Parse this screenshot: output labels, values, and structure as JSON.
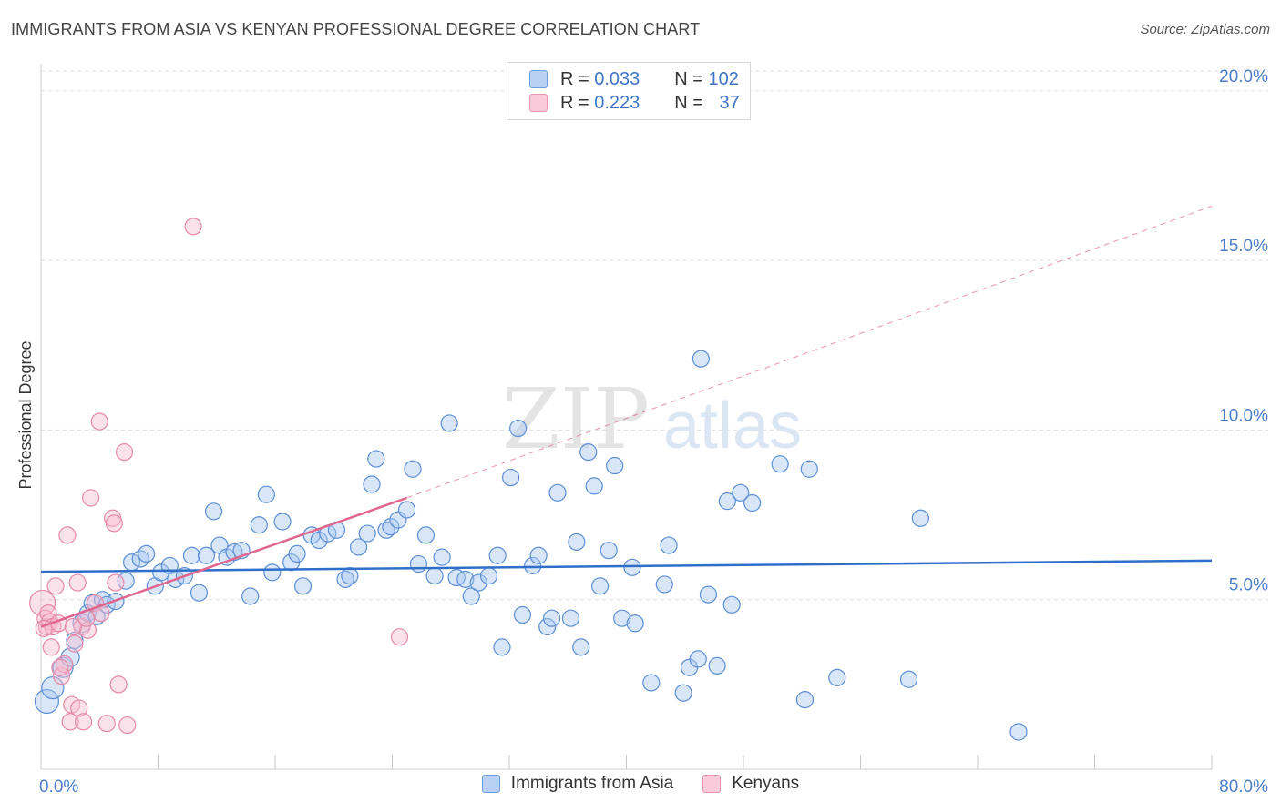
{
  "header": {
    "title": "IMMIGRANTS FROM ASIA VS KENYAN PROFESSIONAL DEGREE CORRELATION CHART",
    "source": "Source: ZipAtlas.com"
  },
  "legend": {
    "r_label": "R =",
    "n_label": "N =",
    "series": [
      {
        "r": "0.033",
        "n": "102"
      },
      {
        "r": "0.223",
        "n": "37"
      }
    ]
  },
  "watermark": {
    "zip": "ZIP",
    "atlas": "atlas"
  },
  "colors": {
    "blue_fill": "#a9c8f0",
    "blue_stroke": "#5b8fd4",
    "blue_line": "#2f6fc9",
    "pink_fill": "#f6bcd0",
    "pink_stroke": "#e58aa8",
    "pink_line": "#e0668e"
  },
  "chart_data": {
    "type": "scatter",
    "title": "IMMIGRANTS FROM ASIA VS KENYAN PROFESSIONAL DEGREE CORRELATION CHART",
    "xlabel": "",
    "ylabel": "Professional Degree",
    "xlim": [
      0,
      80
    ],
    "ylim": [
      0,
      20.8
    ],
    "x_tick_labels": [
      "0.0%",
      "80.0%"
    ],
    "y_ticks": [
      {
        "value": 5,
        "label": "5.0%"
      },
      {
        "value": 10,
        "label": "10.0%"
      },
      {
        "value": 15,
        "label": "15.0%"
      },
      {
        "value": 20,
        "label": "20.0%"
      }
    ],
    "series": [
      {
        "name": "Immigrants from Asia",
        "r": 0.033,
        "n": 102,
        "trend": {
          "x0": 0,
          "y0": 5.82,
          "x1": 80,
          "y1": 6.15
        },
        "points": [
          [
            0.4,
            2.0
          ],
          [
            0.8,
            2.4
          ],
          [
            1.5,
            3.0
          ],
          [
            2.0,
            3.3
          ],
          [
            2.3,
            3.8
          ],
          [
            2.8,
            4.3
          ],
          [
            3.2,
            4.6
          ],
          [
            3.5,
            4.9
          ],
          [
            3.8,
            4.5
          ],
          [
            4.2,
            5.0
          ],
          [
            4.5,
            4.85
          ],
          [
            5.1,
            4.95
          ],
          [
            5.8,
            5.55
          ],
          [
            6.2,
            6.1
          ],
          [
            6.8,
            6.2
          ],
          [
            7.2,
            6.35
          ],
          [
            7.8,
            5.4
          ],
          [
            8.2,
            5.8
          ],
          [
            8.8,
            6.0
          ],
          [
            9.2,
            5.6
          ],
          [
            9.8,
            5.7
          ],
          [
            10.3,
            6.3
          ],
          [
            10.8,
            5.2
          ],
          [
            11.3,
            6.3
          ],
          [
            11.8,
            7.6
          ],
          [
            12.2,
            6.6
          ],
          [
            12.7,
            6.25
          ],
          [
            13.2,
            6.4
          ],
          [
            13.7,
            6.45
          ],
          [
            14.3,
            5.1
          ],
          [
            14.9,
            7.2
          ],
          [
            15.4,
            8.1
          ],
          [
            15.8,
            5.8
          ],
          [
            16.5,
            7.3
          ],
          [
            17.1,
            6.1
          ],
          [
            17.5,
            6.35
          ],
          [
            17.9,
            5.4
          ],
          [
            18.5,
            6.9
          ],
          [
            19.0,
            6.75
          ],
          [
            19.6,
            6.95
          ],
          [
            20.2,
            7.05
          ],
          [
            20.8,
            5.6
          ],
          [
            21.1,
            5.7
          ],
          [
            21.7,
            6.55
          ],
          [
            22.3,
            6.95
          ],
          [
            22.6,
            8.4
          ],
          [
            22.9,
            9.15
          ],
          [
            23.6,
            7.05
          ],
          [
            23.9,
            7.15
          ],
          [
            24.4,
            7.35
          ],
          [
            25.0,
            7.65
          ],
          [
            25.4,
            8.85
          ],
          [
            25.8,
            6.05
          ],
          [
            26.3,
            6.9
          ],
          [
            26.9,
            5.7
          ],
          [
            27.4,
            6.25
          ],
          [
            27.9,
            10.2
          ],
          [
            28.4,
            5.65
          ],
          [
            29.0,
            5.6
          ],
          [
            29.4,
            5.1
          ],
          [
            29.9,
            5.5
          ],
          [
            30.6,
            5.7
          ],
          [
            31.2,
            6.3
          ],
          [
            31.5,
            3.6
          ],
          [
            32.1,
            8.6
          ],
          [
            32.6,
            10.05
          ],
          [
            32.9,
            4.55
          ],
          [
            33.6,
            6.0
          ],
          [
            34.0,
            6.3
          ],
          [
            34.6,
            4.2
          ],
          [
            34.9,
            4.45
          ],
          [
            35.3,
            8.15
          ],
          [
            36.2,
            4.45
          ],
          [
            36.6,
            6.7
          ],
          [
            36.9,
            3.6
          ],
          [
            37.4,
            9.35
          ],
          [
            37.8,
            8.35
          ],
          [
            38.2,
            5.4
          ],
          [
            38.8,
            6.45
          ],
          [
            39.2,
            8.95
          ],
          [
            39.7,
            4.45
          ],
          [
            40.4,
            5.95
          ],
          [
            40.6,
            4.3
          ],
          [
            41.7,
            2.55
          ],
          [
            42.6,
            5.45
          ],
          [
            42.9,
            6.6
          ],
          [
            43.9,
            2.25
          ],
          [
            44.3,
            3.0
          ],
          [
            44.9,
            3.25
          ],
          [
            45.1,
            12.1
          ],
          [
            45.6,
            5.15
          ],
          [
            46.2,
            3.05
          ],
          [
            46.9,
            7.9
          ],
          [
            47.2,
            4.85
          ],
          [
            47.8,
            8.15
          ],
          [
            48.6,
            7.85
          ],
          [
            50.5,
            9.0
          ],
          [
            52.2,
            2.05
          ],
          [
            52.5,
            8.85
          ],
          [
            54.4,
            2.7
          ],
          [
            59.3,
            2.65
          ],
          [
            60.1,
            7.4
          ],
          [
            66.8,
            1.1
          ]
        ]
      },
      {
        "name": "Kenyans",
        "r": 0.223,
        "n": 37,
        "trend": {
          "x0": 0,
          "y0": 4.2,
          "x1": 25,
          "y1": 8.0
        },
        "trend_dashed": {
          "x0": 25,
          "y0": 8.0,
          "x1": 80,
          "y1": 16.6
        },
        "points": [
          [
            0.1,
            4.9
          ],
          [
            0.3,
            4.45
          ],
          [
            0.4,
            4.2
          ],
          [
            0.5,
            4.6
          ],
          [
            0.6,
            4.35
          ],
          [
            0.7,
            3.6
          ],
          [
            0.8,
            4.2
          ],
          [
            1.0,
            5.4
          ],
          [
            1.2,
            4.3
          ],
          [
            1.4,
            2.75
          ],
          [
            1.6,
            3.1
          ],
          [
            1.8,
            6.9
          ],
          [
            2.0,
            1.4
          ],
          [
            2.1,
            1.9
          ],
          [
            2.3,
            3.7
          ],
          [
            2.5,
            5.5
          ],
          [
            2.6,
            1.8
          ],
          [
            2.8,
            4.2
          ],
          [
            2.9,
            1.4
          ],
          [
            3.2,
            4.1
          ],
          [
            3.4,
            8.0
          ],
          [
            3.7,
            4.9
          ],
          [
            4.1,
            4.6
          ],
          [
            4.0,
            10.25
          ],
          [
            4.9,
            7.4
          ],
          [
            5.0,
            7.25
          ],
          [
            5.1,
            5.5
          ],
          [
            5.3,
            2.5
          ],
          [
            4.5,
            1.35
          ],
          [
            5.9,
            1.3
          ],
          [
            5.7,
            9.35
          ],
          [
            10.4,
            16.0
          ],
          [
            24.5,
            3.9
          ],
          [
            0.2,
            4.15
          ],
          [
            1.3,
            3.0
          ],
          [
            3.1,
            4.45
          ],
          [
            2.2,
            4.2
          ]
        ]
      }
    ]
  },
  "bottom_legend": [
    "Immigrants from Asia",
    "Kenyans"
  ]
}
